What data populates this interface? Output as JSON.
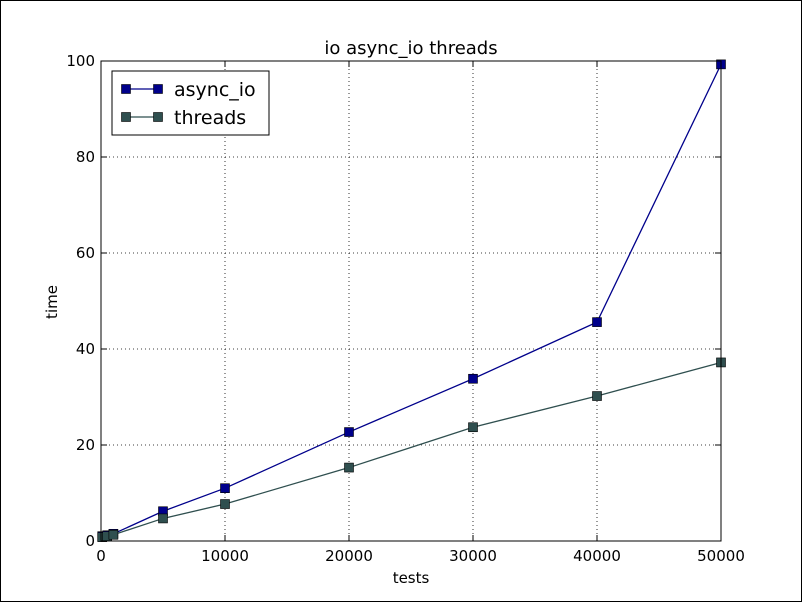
{
  "chart_data": {
    "type": "line",
    "title": "io async_io threads",
    "xlabel": "tests",
    "ylabel": "time",
    "xlim": [
      0,
      50000
    ],
    "ylim": [
      0,
      100
    ],
    "xticks": [
      0,
      10000,
      20000,
      30000,
      40000,
      50000
    ],
    "yticks": [
      0,
      20,
      40,
      60,
      80,
      100
    ],
    "grid": true,
    "legend_position": "top-left",
    "series": [
      {
        "name": "async_io",
        "color": "#00008b",
        "marker": "square",
        "points": [
          [
            100,
            1.0
          ],
          [
            500,
            1.2
          ],
          [
            1000,
            1.5
          ],
          [
            5000,
            6.2
          ],
          [
            10000,
            11.0
          ],
          [
            20000,
            22.7
          ],
          [
            30000,
            33.8
          ],
          [
            40000,
            45.6
          ],
          [
            50000,
            99.3
          ]
        ]
      },
      {
        "name": "threads",
        "color": "#2f4f4f",
        "marker": "square",
        "points": [
          [
            100,
            0.8
          ],
          [
            500,
            1.0
          ],
          [
            1000,
            1.3
          ],
          [
            5000,
            4.7
          ],
          [
            10000,
            7.7
          ],
          [
            20000,
            15.3
          ],
          [
            30000,
            23.7
          ],
          [
            40000,
            30.2
          ],
          [
            50000,
            37.2
          ]
        ]
      }
    ]
  }
}
